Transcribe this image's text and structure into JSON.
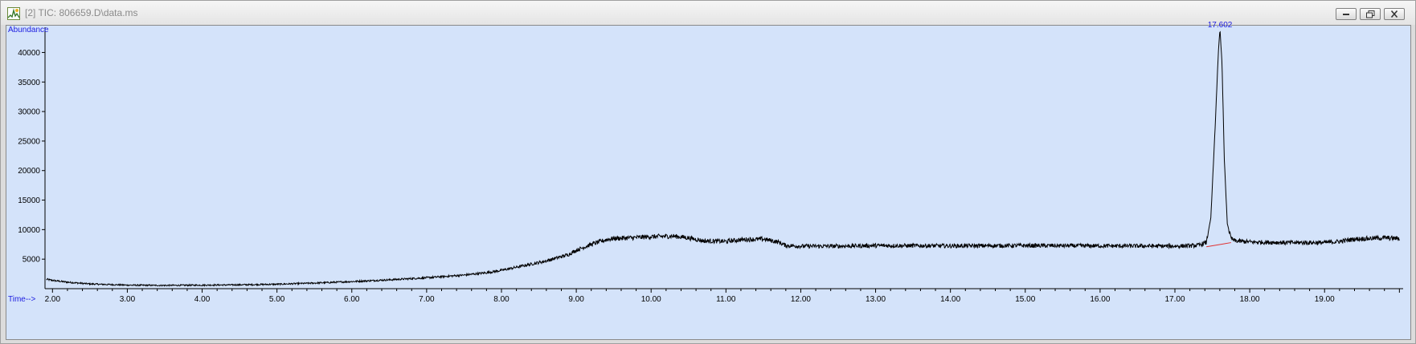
{
  "window": {
    "title": "[2] TIC: 806659.D\\data.ms"
  },
  "icons": {
    "app": "chromatogram-app-icon",
    "minimize": "minimize-icon",
    "restore": "restore-icon",
    "close": "close-icon"
  },
  "colors": {
    "background": "#d4e3fa",
    "trace": "#000000",
    "label_blue": "#1d1de0",
    "baseline_marker": "#e03030"
  },
  "chart_data": {
    "type": "line",
    "title": "",
    "xlabel": "Time-->",
    "ylabel": "Abundance",
    "xlim": [
      1.9,
      20.05
    ],
    "ylim": [
      0,
      44000
    ],
    "x_ticks": [
      "2.00",
      "3.00",
      "4.00",
      "5.00",
      "6.00",
      "7.00",
      "8.00",
      "9.00",
      "10.00",
      "11.00",
      "12.00",
      "13.00",
      "14.00",
      "15.00",
      "16.00",
      "17.00",
      "18.00",
      "19.00"
    ],
    "y_ticks": [
      "5000",
      "10000",
      "15000",
      "20000",
      "25000",
      "30000",
      "35000",
      "40000"
    ],
    "grid": false,
    "series": [
      {
        "x": [
          1.92,
          2.0,
          2.2,
          2.5,
          3.0,
          3.5,
          4.0,
          4.5,
          5.0,
          5.5,
          6.0,
          6.5,
          7.0,
          7.5,
          7.8,
          8.0,
          8.3,
          8.6,
          8.9,
          9.0,
          9.2,
          9.4,
          9.5,
          9.7,
          10.0,
          10.3,
          10.5,
          10.7,
          11.0,
          11.2,
          11.5,
          11.7,
          11.8,
          12.0,
          12.5,
          13.0,
          14.0,
          15.0,
          16.0,
          17.0,
          17.3,
          17.42,
          17.48,
          17.54,
          17.58,
          17.602,
          17.63,
          17.66,
          17.7,
          17.75,
          17.8,
          18.0,
          18.5,
          19.0,
          19.2,
          19.4,
          19.6,
          19.8,
          20.0
        ],
        "y": [
          1600,
          1400,
          1100,
          800,
          600,
          550,
          600,
          650,
          750,
          950,
          1200,
          1500,
          1850,
          2300,
          2700,
          3100,
          3900,
          4700,
          5800,
          6500,
          7500,
          8300,
          8500,
          8600,
          8800,
          8900,
          8600,
          8100,
          8000,
          8300,
          8400,
          7900,
          7300,
          7200,
          7200,
          7300,
          7250,
          7300,
          7250,
          7200,
          7300,
          7800,
          12000,
          28000,
          40000,
          44000,
          38000,
          22000,
          11000,
          8500,
          8100,
          7900,
          7800,
          7800,
          8000,
          8400,
          8500,
          8600,
          8500
        ]
      }
    ],
    "annotations": [
      {
        "label": "17.602",
        "x": 17.602,
        "y": 44000
      }
    ],
    "baseline_marker": {
      "x": [
        17.42,
        17.75
      ],
      "y": [
        7100,
        7800
      ]
    }
  }
}
